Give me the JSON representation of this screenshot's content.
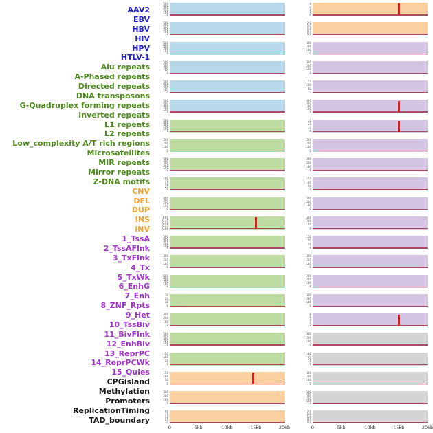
{
  "chart_data": {
    "type": "line",
    "layout": "small-multiples grid of 44 genomic signal tracks, 2 columns x 22 rows, column-major order; labels listed down the left side",
    "x_axis": {
      "range_kb": [
        0,
        20
      ],
      "ticks": [
        "0",
        "5kb",
        "10kb",
        "15kb",
        "20kb"
      ]
    },
    "signal_description": "each track is a mostly flat signal at 0 across the 0-20kb window, with a sharp red peak near 15kb in a few tracks",
    "baseline_color": "#ad4a62",
    "peak_color": "#e41a1c",
    "groups": {
      "virus": {
        "label_color": "#2222cc",
        "panel_color": "#b7d8e8"
      },
      "repeat": {
        "label_color": "#4e8b1d",
        "panel_color": "#bedba1"
      },
      "structural_variant": {
        "label_color": "#f5a02d",
        "panel_color": "#fbd0a1"
      },
      "chromatin_state": {
        "label_color": "#a334cb",
        "panel_color": "#d4c5e2"
      },
      "genomic_feature": {
        "label_color": "#1a1a1a",
        "panel_color": "#d4d4d4"
      }
    },
    "tracks": [
      {
        "name": "AAV2",
        "group": "virus",
        "yticks": [
          "500",
          "400",
          "300",
          "200",
          "100",
          "0"
        ],
        "peak": null
      },
      {
        "name": "EBV",
        "group": "virus",
        "yticks": [
          "500",
          "400",
          "300",
          "200",
          "100",
          "0"
        ],
        "peak": null
      },
      {
        "name": "HBV",
        "group": "virus",
        "yticks": [
          "500",
          "400",
          "300",
          "200",
          "100",
          "0"
        ],
        "peak": null
      },
      {
        "name": "HIV",
        "group": "virus",
        "yticks": [
          "500",
          "400",
          "300",
          "200",
          "100",
          "0"
        ],
        "peak": null
      },
      {
        "name": "HPV",
        "group": "virus",
        "yticks": [
          "500",
          "400",
          "300",
          "200",
          "100",
          "0"
        ],
        "peak": null
      },
      {
        "name": "HTLV-1",
        "group": "virus",
        "yticks": [
          "500",
          "400",
          "300",
          "200",
          "100",
          "0"
        ],
        "peak": null
      },
      {
        "name": "Alu repeats",
        "group": "repeat",
        "yticks": [
          "500",
          "400",
          "300",
          "200",
          "100",
          "0"
        ],
        "peak": null
      },
      {
        "name": "A-Phased repeats",
        "group": "repeat",
        "yticks": [
          "300",
          "200",
          "100",
          "0"
        ],
        "peak": null
      },
      {
        "name": "Directed repeats",
        "group": "repeat",
        "yticks": [
          "500",
          "400",
          "300",
          "200",
          "100",
          "0"
        ],
        "peak": null
      },
      {
        "name": "DNA transposons",
        "group": "repeat",
        "yticks": [
          "100",
          "75",
          "50",
          "25",
          "0"
        ],
        "peak": null
      },
      {
        "name": "G-Quadruplex forming repeats",
        "group": "repeat",
        "yticks": [
          "400",
          "300",
          "200",
          "100",
          "0"
        ],
        "peak": null
      },
      {
        "name": "Inverted repeats",
        "group": "repeat",
        "yticks": [
          "1.00",
          "0.75",
          "0.50",
          "0.25",
          "0.00"
        ],
        "peak": {
          "x_kb": 15,
          "h": 1.0
        }
      },
      {
        "name": "L1 repeats",
        "group": "repeat",
        "yticks": [
          "500",
          "400",
          "300",
          "200",
          "100",
          "0"
        ],
        "peak": null
      },
      {
        "name": "L2 repeats",
        "group": "repeat",
        "yticks": [
          "300",
          "200",
          "100",
          "0"
        ],
        "peak": null
      },
      {
        "name": "Low_complexity A/T rich regions",
        "group": "repeat",
        "yticks": [
          "500",
          "400",
          "300",
          "200",
          "100",
          "0"
        ],
        "peak": null
      },
      {
        "name": "Microsatellites",
        "group": "repeat",
        "yticks": [
          "30",
          "20",
          "10",
          "0"
        ],
        "peak": null
      },
      {
        "name": "MIR repeats",
        "group": "repeat",
        "yticks": [
          "300",
          "200",
          "100",
          "0"
        ],
        "peak": null
      },
      {
        "name": "Mirror repeats",
        "group": "repeat",
        "yticks": [
          "500",
          "400",
          "300",
          "200",
          "100",
          "0"
        ],
        "peak": null
      },
      {
        "name": "Z-DNA motifs",
        "group": "repeat",
        "yticks": [
          "150",
          "100",
          "50",
          "0"
        ],
        "peak": null
      },
      {
        "name": "CNV",
        "group": "structural_variant",
        "yticks": [
          "150",
          "100",
          "50",
          "0"
        ],
        "peak": {
          "x_kb": 14.5,
          "h": 1.0
        }
      },
      {
        "name": "DEL",
        "group": "structural_variant",
        "yticks": [
          "300",
          "200",
          "100",
          "0"
        ],
        "peak": null
      },
      {
        "name": "DUP",
        "group": "structural_variant",
        "yticks": [
          "100",
          "75",
          "50",
          "25",
          "0"
        ],
        "peak": null
      },
      {
        "name": "INS",
        "group": "structural_variant",
        "yticks": [
          "4",
          "3",
          "2",
          "1",
          "0"
        ],
        "peak": {
          "x_kb": 15,
          "h": 1.0
        }
      },
      {
        "name": "INV",
        "group": "structural_variant",
        "yticks": [
          "2.0",
          "1.5",
          "1.0",
          "0.5",
          "0.0"
        ],
        "peak": null
      },
      {
        "name": "1_TssA",
        "group": "chromatin_state",
        "yticks": [
          "300",
          "200",
          "100",
          "0"
        ],
        "peak": null
      },
      {
        "name": "2_TssAFlnk",
        "group": "chromatin_state",
        "yticks": [
          "300",
          "200",
          "100",
          "0"
        ],
        "peak": null
      },
      {
        "name": "3_TxFlnk",
        "group": "chromatin_state",
        "yticks": [
          "150",
          "100",
          "50",
          "0"
        ],
        "peak": null
      },
      {
        "name": "4_Tx",
        "group": "chromatin_state",
        "yticks": [
          "400",
          "300",
          "200",
          "100",
          "0"
        ],
        "peak": {
          "x_kb": 15,
          "h": 0.95
        }
      },
      {
        "name": "5_TxWk",
        "group": "chromatin_state",
        "yticks": [
          "30",
          "20",
          "10",
          "0"
        ],
        "peak": {
          "x_kb": 15,
          "h": 0.9
        }
      },
      {
        "name": "6_EnhG",
        "group": "chromatin_state",
        "yticks": [
          "300",
          "200",
          "100",
          "0"
        ],
        "peak": null
      },
      {
        "name": "7_Enh",
        "group": "chromatin_state",
        "yticks": [
          "300",
          "200",
          "100",
          "0"
        ],
        "peak": null
      },
      {
        "name": "8_ZNF_Rpts",
        "group": "chromatin_state",
        "yticks": [
          "150",
          "100",
          "50",
          "0"
        ],
        "peak": null
      },
      {
        "name": "9_Het",
        "group": "chromatin_state",
        "yticks": [
          "300",
          "200",
          "100",
          "0"
        ],
        "peak": null
      },
      {
        "name": "10_TssBiv",
        "group": "chromatin_state",
        "yticks": [
          "300",
          "200",
          "100",
          "0"
        ],
        "peak": null
      },
      {
        "name": "11_BivFlnk",
        "group": "chromatin_state",
        "yticks": [
          "150",
          "100",
          "50",
          "0"
        ],
        "peak": null
      },
      {
        "name": "12_EnhBiv",
        "group": "chromatin_state",
        "yticks": [
          "300",
          "200",
          "100",
          "0"
        ],
        "peak": null
      },
      {
        "name": "13_ReprPC",
        "group": "chromatin_state",
        "yticks": [
          "300",
          "200",
          "100",
          "0"
        ],
        "peak": null
      },
      {
        "name": "14_ReprPCWk",
        "group": "chromatin_state",
        "yticks": [
          "300",
          "200",
          "100",
          "0"
        ],
        "peak": null
      },
      {
        "name": "15_Quies",
        "group": "chromatin_state",
        "yticks": [
          "8",
          "6",
          "4",
          "2",
          "0"
        ],
        "peak": {
          "x_kb": 15,
          "h": 0.95
        }
      },
      {
        "name": "CPGisland",
        "group": "genomic_feature",
        "yticks": [
          "300",
          "200",
          "100",
          "0"
        ],
        "peak": null
      },
      {
        "name": "Methylation",
        "group": "genomic_feature",
        "yticks": [
          "100",
          "75",
          "50",
          "25",
          "0"
        ],
        "peak": null
      },
      {
        "name": "Promoters",
        "group": "genomic_feature",
        "yticks": [
          "300",
          "200",
          "100",
          "0"
        ],
        "peak": null
      },
      {
        "name": "ReplicationTiming",
        "group": "genomic_feature",
        "yticks": [
          "500",
          "400",
          "300",
          "200",
          "100",
          "0"
        ],
        "peak": null
      },
      {
        "name": "TAD_boundary",
        "group": "genomic_feature",
        "yticks": [
          "2.0",
          "1.5",
          "1.0",
          "0.5",
          "0.0"
        ],
        "peak": null
      }
    ]
  }
}
